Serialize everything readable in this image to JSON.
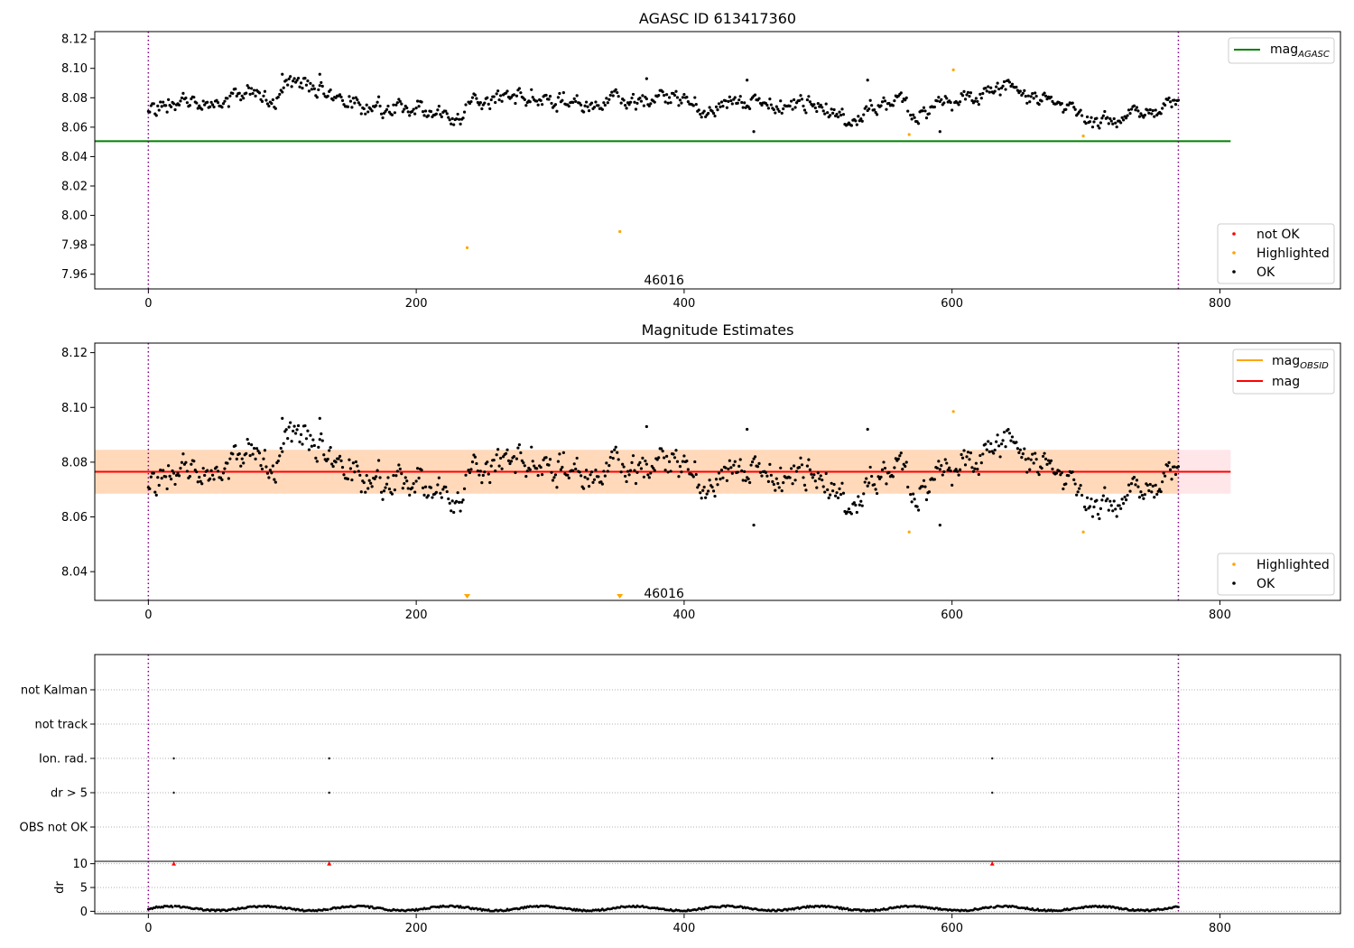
{
  "chart_data": [
    {
      "id": "agasc",
      "type": "scatter",
      "title": "AGASC ID 613417360",
      "xlim": [
        -40,
        890
      ],
      "ylim": [
        7.95,
        8.125
      ],
      "xticks": [
        0,
        200,
        400,
        600,
        800
      ],
      "yticks": [
        7.96,
        7.98,
        8.0,
        8.02,
        8.04,
        8.06,
        8.08,
        8.1,
        8.12
      ],
      "ytick_labels": [
        "7.96",
        "7.98",
        "8.00",
        "8.02",
        "8.04",
        "8.06",
        "8.08",
        "8.10",
        "8.12"
      ],
      "xlabel": "",
      "ylabel": "",
      "obsid_label": "46016",
      "obsid_label_pos": [
        385,
        7.953
      ],
      "vlines": [
        0,
        769
      ],
      "hline": {
        "y": 8.0505,
        "x": [
          -40,
          808
        ],
        "color": "#008000",
        "label_main": "mag",
        "label_sub": "AGASC"
      },
      "series": [
        {
          "name": "OK",
          "color": "#000000",
          "generator": "ok_main"
        },
        {
          "name": "Highlighted",
          "color": "#ffa500",
          "points": [
            [
              238,
              7.978
            ],
            [
              352,
              7.989
            ],
            [
              568,
              8.055
            ],
            [
              601,
              8.099
            ],
            [
              698,
              8.054
            ]
          ]
        },
        {
          "name": "not OK",
          "color": "#ff0000",
          "points": []
        }
      ],
      "legend_lines": [
        {
          "label_main": "mag",
          "label_sub": "AGASC",
          "color": "#008000"
        }
      ],
      "legend_markers": [
        {
          "label": "not OK",
          "color": "#ff0000"
        },
        {
          "label": "Highlighted",
          "color": "#ffa500"
        },
        {
          "label": "OK",
          "color": "#000000"
        }
      ]
    },
    {
      "id": "estimates",
      "type": "scatter",
      "title": "Magnitude Estimates",
      "xlim": [
        -40,
        890
      ],
      "ylim": [
        8.0295,
        8.1235
      ],
      "xticks": [
        0,
        200,
        400,
        600,
        800
      ],
      "yticks": [
        8.04,
        8.06,
        8.08,
        8.1,
        8.12
      ],
      "ytick_labels": [
        "8.04",
        "8.06",
        "8.08",
        "8.10",
        "8.12"
      ],
      "xlabel": "",
      "ylabel": "",
      "obsid_label": "46016",
      "obsid_label_pos": [
        385,
        8.0305
      ],
      "vlines": [
        0,
        769
      ],
      "mag_line": {
        "y": 8.0765,
        "x": [
          -40,
          808
        ],
        "color": "#ff0000"
      },
      "pink_band": {
        "y": [
          8.0685,
          8.0845
        ],
        "x": [
          -40,
          808
        ],
        "color": "#ffb6c1"
      },
      "orange_band": {
        "y": [
          8.0685,
          8.0845
        ],
        "x": [
          -40,
          769
        ],
        "color": "#ffa500"
      },
      "obsid_line": {
        "y": 8.0765,
        "x": [
          -40,
          769
        ],
        "color": "#ffa500"
      },
      "series": [
        {
          "name": "OK",
          "color": "#000000",
          "generator": "ok_main"
        },
        {
          "name": "Highlighted",
          "color": "#ffa500",
          "points": [
            [
              568,
              8.0545
            ],
            [
              601,
              8.0985
            ],
            [
              698,
              8.0545
            ]
          ]
        }
      ],
      "clipped_markers": [
        238,
        352
      ],
      "legend_lines": [
        {
          "label_main": "mag",
          "label_sub": "OBSID",
          "color": "#ffa500"
        },
        {
          "label_main": "mag",
          "label_sub": "",
          "color": "#ff0000"
        }
      ],
      "legend_markers": [
        {
          "label": "Highlighted",
          "color": "#ffa500"
        },
        {
          "label": "OK",
          "color": "#000000"
        }
      ]
    },
    {
      "id": "flags",
      "type": "scatter",
      "title": "",
      "xlim": [
        -40,
        890
      ],
      "categories": [
        "not Kalman",
        "not track",
        "Ion. rad.",
        "dr > 5",
        "OBS not OK"
      ],
      "vlines": [
        0,
        769
      ],
      "flag_points": [
        {
          "x": 19,
          "category": "Ion. rad."
        },
        {
          "x": 135,
          "category": "Ion. rad."
        },
        {
          "x": 630,
          "category": "Ion. rad."
        },
        {
          "x": 19,
          "category": "dr > 5"
        },
        {
          "x": 135,
          "category": "dr > 5"
        },
        {
          "x": 630,
          "category": "dr > 5"
        }
      ]
    },
    {
      "id": "dr",
      "type": "scatter",
      "title": "",
      "xlim": [
        -40,
        890
      ],
      "ylim": [
        -0.5,
        10.5
      ],
      "yticks": [
        0,
        5,
        10
      ],
      "ytick_labels": [
        "0",
        "5",
        "10"
      ],
      "xticks": [
        0,
        200,
        400,
        600,
        800
      ],
      "ylabel": "dr",
      "vlines": [
        0,
        769
      ],
      "series": [
        {
          "name": "dr",
          "color": "#000000",
          "generator": "dr"
        },
        {
          "name": "dr clipped",
          "color": "#ff0000",
          "points": [
            [
              19,
              10
            ],
            [
              135,
              10
            ],
            [
              630,
              10
            ]
          ]
        }
      ]
    }
  ]
}
